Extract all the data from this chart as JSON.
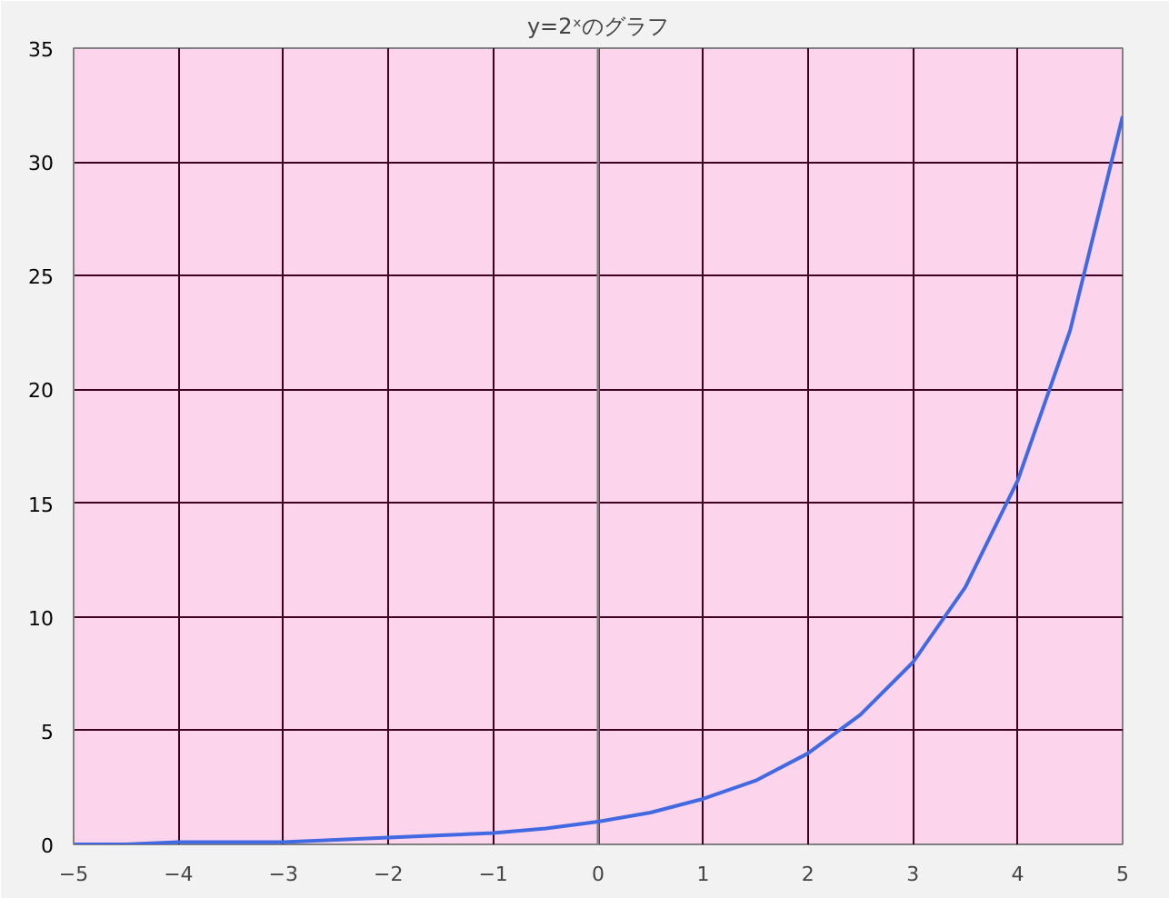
{
  "chart_data": {
    "type": "line",
    "title": "y=2ˣのグラフ",
    "x": [
      -5,
      -4.5,
      -4,
      -3.5,
      -3,
      -2.5,
      -2,
      -1.5,
      -1,
      -0.5,
      0,
      0.5,
      1,
      1.5,
      2,
      2.5,
      3,
      3.5,
      4,
      4.5,
      5
    ],
    "series": [
      {
        "color": "#4169e1",
        "values": [
          0.0,
          0.0,
          0.1,
          0.1,
          0.1,
          0.2,
          0.3,
          0.4,
          0.5,
          0.7,
          1,
          1.4,
          2,
          2.8,
          4,
          5.7,
          8,
          11.3,
          16,
          22.6,
          32
        ]
      }
    ],
    "xlim": [
      -5,
      5
    ],
    "ylim": [
      0,
      35
    ],
    "xticks": [
      -5,
      -4,
      -3,
      -2,
      -1,
      0,
      1,
      2,
      3,
      4,
      5
    ],
    "yticks": [
      0,
      5,
      10,
      15,
      20,
      25,
      30,
      35
    ],
    "grid": true,
    "marker": "none",
    "line_style": "solid"
  }
}
